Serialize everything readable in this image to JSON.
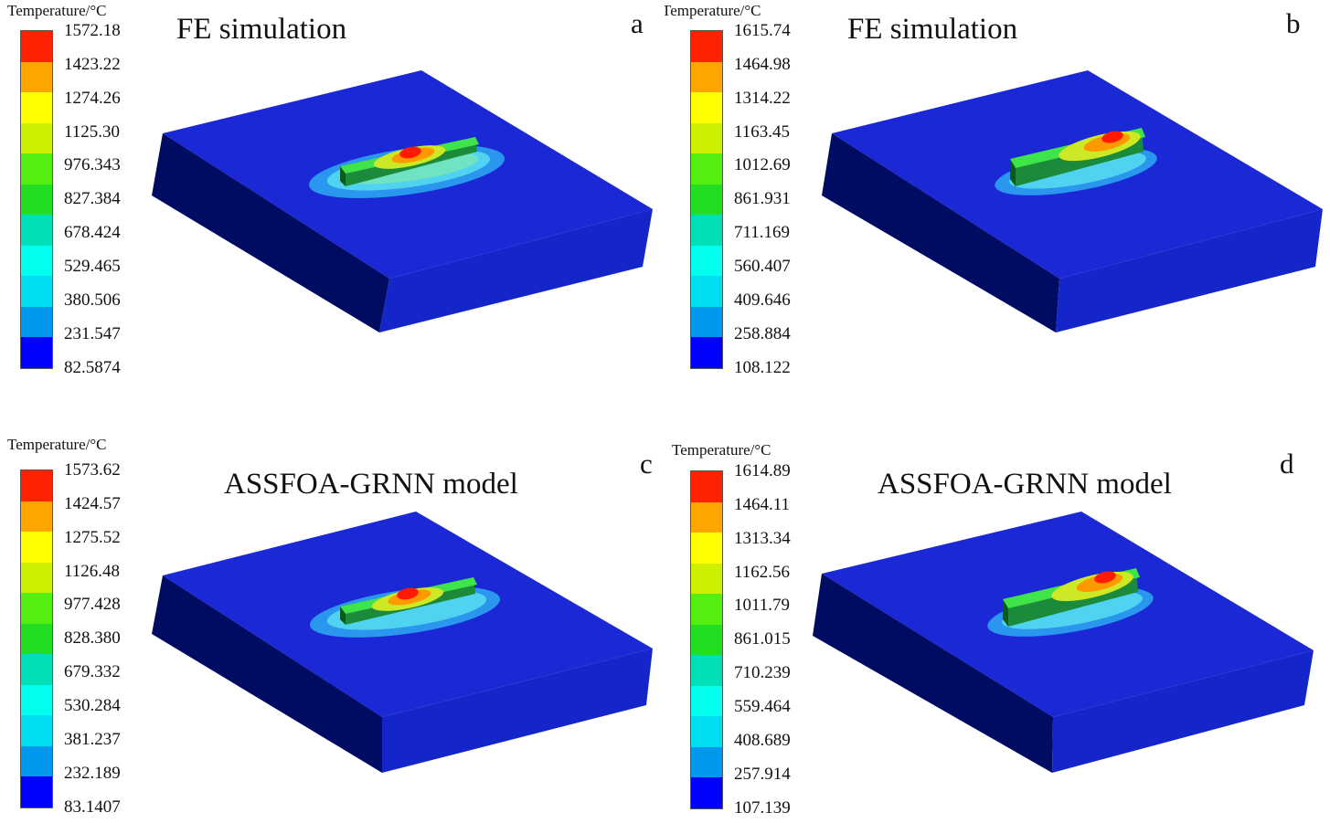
{
  "legend_title": "Temperature/°C",
  "colorscale": [
    "#0000ff",
    "#0099ee",
    "#00ddee",
    "#00ffee",
    "#00e0b8",
    "#22dd22",
    "#55ee11",
    "#ccf000",
    "#ffff00",
    "#ffa500",
    "#ff2200"
  ],
  "panels": [
    {
      "letter": "a",
      "title": "FE simulation",
      "ticks": [
        "1572.18",
        "1423.22",
        "1274.26",
        "1125.30",
        "976.343",
        "827.384",
        "678.424",
        "529.465",
        "380.506",
        "231.547",
        "82.5874"
      ]
    },
    {
      "letter": "b",
      "title": "FE simulation",
      "ticks": [
        "1615.74",
        "1464.98",
        "1314.22",
        "1163.45",
        "1012.69",
        "861.931",
        "711.169",
        "560.407",
        "409.646",
        "258.884",
        "108.122"
      ]
    },
    {
      "letter": "c",
      "title": "ASSFOA-GRNN model",
      "ticks": [
        "1573.62",
        "1424.57",
        "1275.52",
        "1126.48",
        "977.428",
        "828.380",
        "679.332",
        "530.284",
        "381.237",
        "232.189",
        "83.1407"
      ]
    },
    {
      "letter": "d",
      "title": "ASSFOA-GRNN model",
      "ticks": [
        "1614.89",
        "1464.11",
        "1313.34",
        "1162.56",
        "1011.79",
        "861.015",
        "710.239",
        "559.464",
        "408.689",
        "257.914",
        "107.139"
      ]
    }
  ]
}
